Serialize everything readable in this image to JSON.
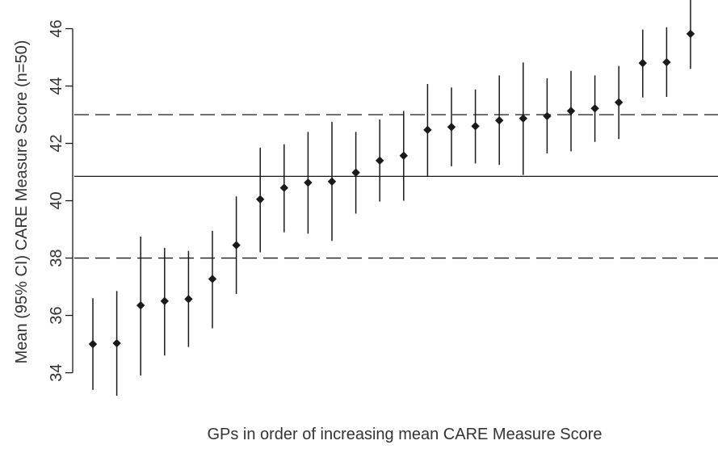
{
  "chart_data": {
    "type": "scatter",
    "xlabel": "GPs in order of increasing mean CARE Measure Score",
    "ylabel": "Mean (95% CI) CARE Measure Score (n=50)",
    "ylim": [
      33.2,
      47.0
    ],
    "yticks": [
      34,
      36,
      38,
      40,
      42,
      44,
      46
    ],
    "reference_lines": [
      {
        "value": 43.0,
        "style": "dashed"
      },
      {
        "value": 40.85,
        "style": "solid"
      },
      {
        "value": 38.0,
        "style": "dashed"
      }
    ],
    "points": [
      {
        "mean": 35.0,
        "lower": 33.4,
        "upper": 36.6
      },
      {
        "mean": 35.03,
        "lower": 33.2,
        "upper": 36.85
      },
      {
        "mean": 36.35,
        "lower": 33.9,
        "upper": 38.75
      },
      {
        "mean": 36.5,
        "lower": 34.6,
        "upper": 38.35
      },
      {
        "mean": 36.57,
        "lower": 34.9,
        "upper": 38.25
      },
      {
        "mean": 37.27,
        "lower": 35.55,
        "upper": 38.95
      },
      {
        "mean": 38.45,
        "lower": 36.75,
        "upper": 40.15
      },
      {
        "mean": 40.05,
        "lower": 38.2,
        "upper": 41.85
      },
      {
        "mean": 40.45,
        "lower": 38.9,
        "upper": 41.97
      },
      {
        "mean": 40.63,
        "lower": 38.85,
        "upper": 42.4
      },
      {
        "mean": 40.67,
        "lower": 38.6,
        "upper": 42.75
      },
      {
        "mean": 40.98,
        "lower": 39.55,
        "upper": 42.4
      },
      {
        "mean": 41.4,
        "lower": 39.97,
        "upper": 42.83
      },
      {
        "mean": 41.57,
        "lower": 40.0,
        "upper": 43.13
      },
      {
        "mean": 42.47,
        "lower": 40.85,
        "upper": 44.07
      },
      {
        "mean": 42.57,
        "lower": 41.2,
        "upper": 43.95
      },
      {
        "mean": 42.6,
        "lower": 41.3,
        "upper": 43.88
      },
      {
        "mean": 42.8,
        "lower": 41.25,
        "upper": 44.37
      },
      {
        "mean": 42.87,
        "lower": 40.9,
        "upper": 44.82
      },
      {
        "mean": 42.95,
        "lower": 41.65,
        "upper": 44.27
      },
      {
        "mean": 43.13,
        "lower": 41.72,
        "upper": 44.53
      },
      {
        "mean": 43.22,
        "lower": 42.05,
        "upper": 44.37
      },
      {
        "mean": 43.43,
        "lower": 42.15,
        "upper": 44.7
      },
      {
        "mean": 44.8,
        "lower": 43.6,
        "upper": 45.97
      },
      {
        "mean": 44.83,
        "lower": 43.62,
        "upper": 46.05
      },
      {
        "mean": 45.82,
        "lower": 44.6,
        "upper": 47.03
      }
    ],
    "colors": {
      "marker": "#1a1a1a",
      "line": "#1a1a1a",
      "text": "#333333"
    },
    "grid": false,
    "legend": "none"
  }
}
